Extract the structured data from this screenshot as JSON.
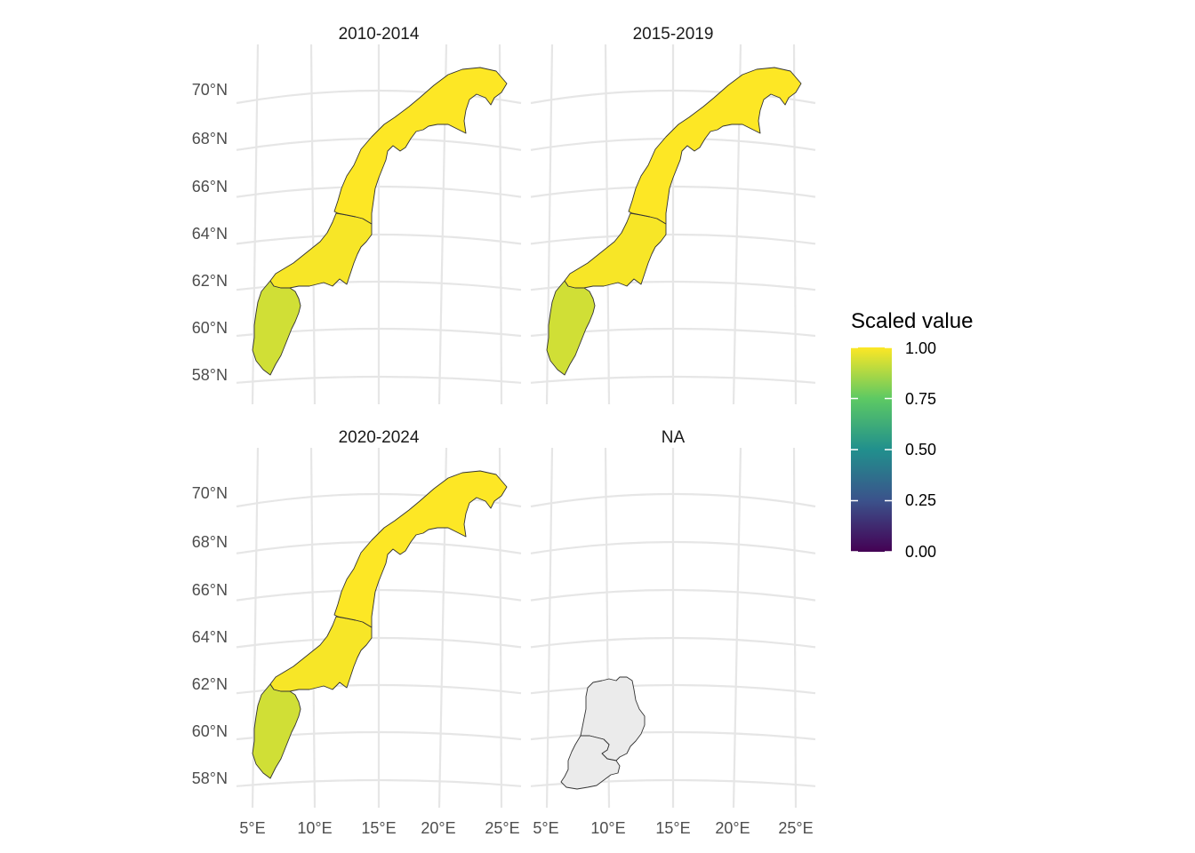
{
  "panels": [
    {
      "title": "2010-2014",
      "regions": {
        "north": 1.0,
        "middle": 0.99,
        "south": 0.93
      }
    },
    {
      "title": "2015-2019",
      "regions": {
        "north": 1.0,
        "middle": 0.99,
        "south": 0.93
      }
    },
    {
      "title": "2020-2024",
      "regions": {
        "north": 1.0,
        "middle": 0.99,
        "south": 0.93
      }
    },
    {
      "title": "NA",
      "regions": {
        "na_west": null,
        "na_east": null
      }
    }
  ],
  "axes": {
    "y_ticks": [
      "70°N",
      "68°N",
      "66°N",
      "64°N",
      "62°N",
      "60°N",
      "58°N"
    ],
    "x_ticks": [
      "5°E",
      "10°E",
      "15°E",
      "20°E",
      "25°E"
    ]
  },
  "legend": {
    "title": "Scaled value",
    "labels": [
      "1.00",
      "0.75",
      "0.50",
      "0.25",
      "0.00"
    ],
    "palette": [
      "#440154",
      "#3b528b",
      "#21908d",
      "#5dc963",
      "#fde725"
    ],
    "na_fill": "#ebebeb"
  },
  "colors": {
    "grid": "#e6e6e6",
    "border": "#333333",
    "high_fill": "#fae622",
    "mid_fill": "#f5e31e",
    "south_fill": "#dde12b"
  }
}
